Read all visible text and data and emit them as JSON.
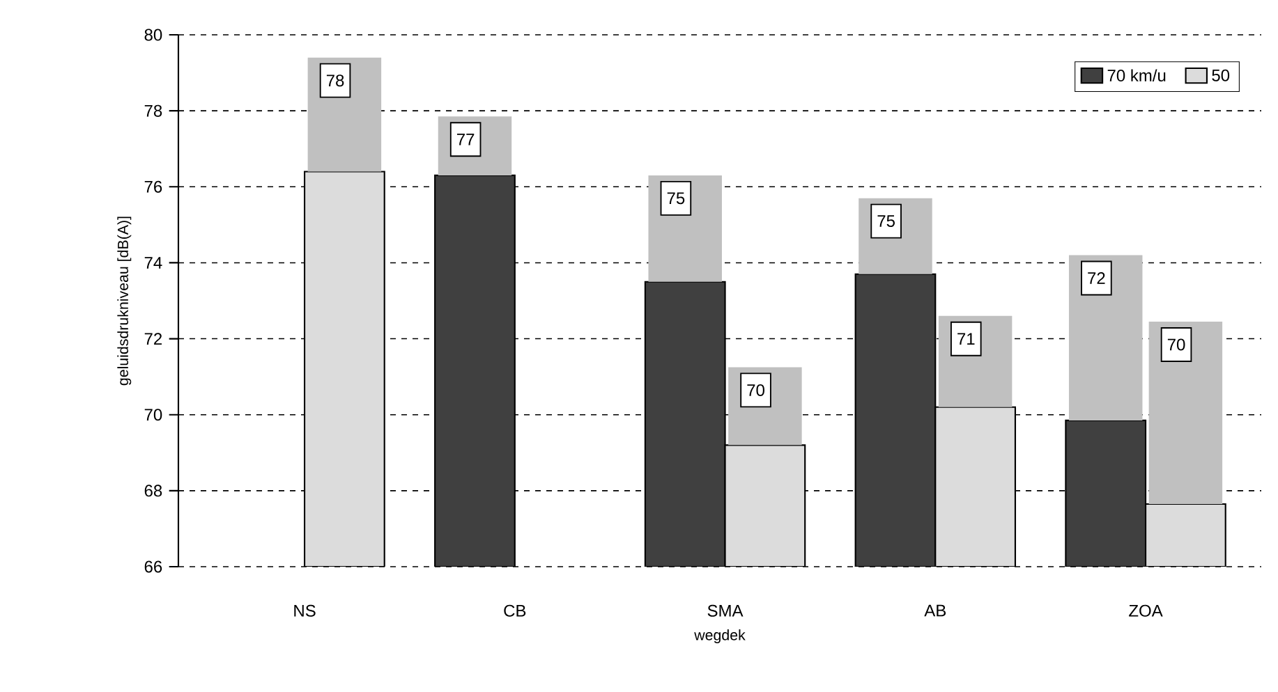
{
  "chart_data": {
    "type": "bar",
    "xlabel": "wegdek",
    "ylabel": "geluidsdrukniveau [dB(A)]",
    "categories": [
      "NS",
      "CB",
      "SMA",
      "AB",
      "ZOA"
    ],
    "series": [
      {
        "name": "70 km/u",
        "color": "#404040",
        "values": [
          null,
          76.3,
          73.5,
          73.7,
          69.85
        ]
      },
      {
        "color": "#c0c0c0",
        "base": [
          null,
          76.3,
          73.5,
          73.7,
          69.85
        ],
        "values": [
          null,
          1.55,
          2.8,
          2.0,
          4.35
        ]
      },
      {
        "name": "50",
        "color": "#dcdcdc",
        "values": [
          76.4,
          null,
          69.2,
          70.2,
          67.65
        ]
      },
      {
        "color": "#c0c0c0",
        "base": [
          76.4,
          null,
          69.2,
          70.2,
          67.65
        ],
        "values": [
          3.0,
          null,
          2.05,
          2.4,
          4.8
        ]
      }
    ],
    "annotations": [
      {
        "text": "78",
        "x": "NS",
        "y": 79.4
      },
      {
        "text": "77",
        "x": "CB",
        "y": 77.85
      },
      {
        "text": "75",
        "x": "SMA",
        "y": 76.3
      },
      {
        "text": "70",
        "x": "SMA",
        "y": 71.25
      },
      {
        "text": "75",
        "x": "AB",
        "y": 75.7
      },
      {
        "text": "71",
        "x": "AB",
        "y": 72.6
      },
      {
        "text": "72",
        "x": "ZOA",
        "y": 74.2
      },
      {
        "text": "70",
        "x": "ZOA",
        "y": 72.45
      }
    ],
    "ylim": [
      66,
      80
    ],
    "yticks": [
      66,
      68,
      70,
      72,
      74,
      76,
      78,
      80
    ],
    "grid": "y",
    "legend": "top right"
  }
}
